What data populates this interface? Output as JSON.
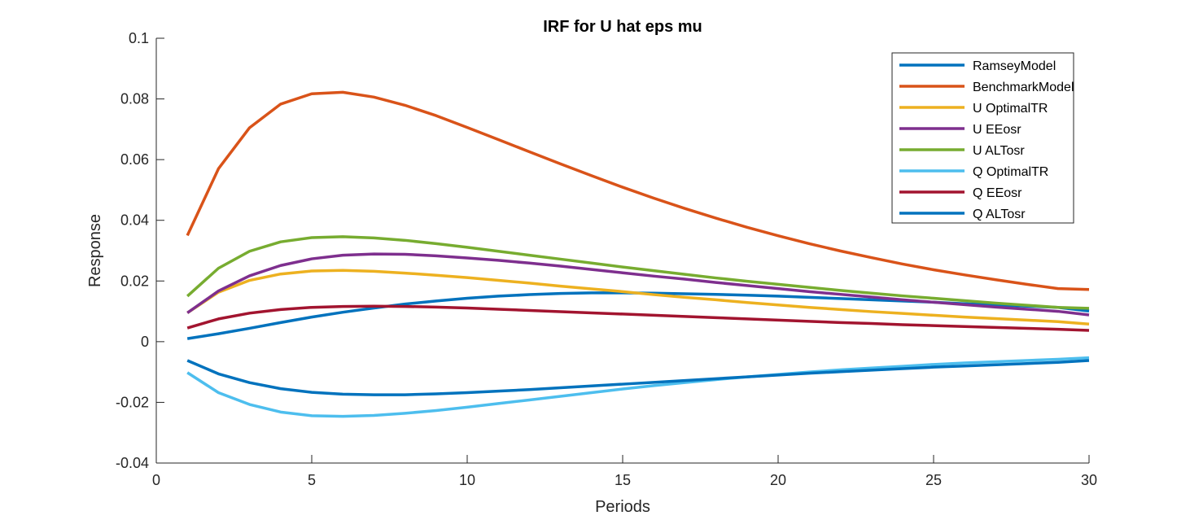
{
  "chart_data": {
    "type": "line",
    "title": "IRF for U hat eps mu",
    "xlabel": "Periods",
    "ylabel": "Response",
    "xlim": [
      0,
      30
    ],
    "ylim": [
      -0.04,
      0.1
    ],
    "xticks": [
      0,
      5,
      10,
      15,
      20,
      25,
      30
    ],
    "yticks": [
      -0.04,
      -0.02,
      0,
      0.02,
      0.04,
      0.06,
      0.08,
      0.1
    ],
    "xtick_labels": [
      "0",
      "5",
      "10",
      "15",
      "20",
      "25",
      "30"
    ],
    "ytick_labels": [
      "-0.04",
      "-0.02",
      "0",
      "0.02",
      "0.04",
      "0.06",
      "0.08",
      "0.1"
    ],
    "grid": false,
    "legend_position": "top-right",
    "x": [
      1,
      2,
      3,
      4,
      5,
      6,
      7,
      8,
      9,
      10,
      11,
      12,
      13,
      14,
      15,
      16,
      17,
      18,
      19,
      20,
      21,
      22,
      23,
      24,
      25,
      26,
      27,
      28,
      29,
      30
    ],
    "series": [
      {
        "name": "RamseyModel",
        "color": "#0072BD",
        "values": [
          0.001,
          0.0026,
          0.0044,
          0.0063,
          0.0081,
          0.0097,
          0.0111,
          0.0124,
          0.0134,
          0.0143,
          0.015,
          0.0155,
          0.0159,
          0.0161,
          0.0161,
          0.016,
          0.0158,
          0.0156,
          0.0153,
          0.015,
          0.0146,
          0.0142,
          0.0138,
          0.0134,
          0.013,
          0.0125,
          0.0121,
          0.0117,
          0.0113,
          0.0101
        ]
      },
      {
        "name": "BenchmarkModel",
        "color": "#D95319",
        "values": [
          0.035,
          0.057,
          0.0705,
          0.0783,
          0.0817,
          0.0822,
          0.0806,
          0.0779,
          0.0745,
          0.0706,
          0.0666,
          0.0626,
          0.0586,
          0.0547,
          0.0509,
          0.0473,
          0.0439,
          0.0407,
          0.0377,
          0.0349,
          0.0323,
          0.0299,
          0.0277,
          0.0256,
          0.0237,
          0.022,
          0.0204,
          0.0189,
          0.0175,
          0.0172
        ]
      },
      {
        "name": "U OptimalTR",
        "color": "#EDB120",
        "values": [
          0.0095,
          0.0163,
          0.0202,
          0.0223,
          0.0233,
          0.0235,
          0.0232,
          0.0226,
          0.0219,
          0.0211,
          0.0202,
          0.0193,
          0.0183,
          0.0174,
          0.0165,
          0.0155,
          0.0146,
          0.0138,
          0.0129,
          0.0121,
          0.0113,
          0.0106,
          0.0099,
          0.0093,
          0.0087,
          0.0081,
          0.0076,
          0.0071,
          0.0066,
          0.0058
        ]
      },
      {
        "name": "U EEosr",
        "color": "#7E2F8E",
        "values": [
          0.0095,
          0.0167,
          0.0217,
          0.0251,
          0.0273,
          0.0285,
          0.0289,
          0.0288,
          0.0283,
          0.0276,
          0.0268,
          0.0259,
          0.0249,
          0.0238,
          0.0227,
          0.0216,
          0.0206,
          0.0195,
          0.0185,
          0.0175,
          0.0165,
          0.0156,
          0.0147,
          0.0138,
          0.013,
          0.0122,
          0.0114,
          0.0107,
          0.01,
          0.0088
        ]
      },
      {
        "name": "U ALTosr",
        "color": "#77AC30",
        "values": [
          0.015,
          0.0242,
          0.0298,
          0.0329,
          0.0343,
          0.0346,
          0.0342,
          0.0334,
          0.0323,
          0.0311,
          0.0298,
          0.0285,
          0.0272,
          0.0259,
          0.0246,
          0.0234,
          0.0222,
          0.021,
          0.0199,
          0.0189,
          0.0179,
          0.0169,
          0.016,
          0.0151,
          0.0143,
          0.0135,
          0.0127,
          0.012,
          0.0113,
          0.011
        ]
      },
      {
        "name": "Q OptimalTR",
        "color": "#4DBEEE",
        "values": [
          -0.0102,
          -0.0168,
          -0.0207,
          -0.0232,
          -0.0244,
          -0.0246,
          -0.0243,
          -0.0236,
          -0.0227,
          -0.0216,
          -0.0204,
          -0.0192,
          -0.018,
          -0.0168,
          -0.0156,
          -0.0145,
          -0.0135,
          -0.0125,
          -0.0116,
          -0.0108,
          -0.01,
          -0.0093,
          -0.0087,
          -0.0081,
          -0.0075,
          -0.007,
          -0.0066,
          -0.0062,
          -0.0058,
          -0.0053
        ]
      },
      {
        "name": "Q EEosr",
        "color": "#A2142F",
        "values": [
          0.0045,
          0.0075,
          0.0094,
          0.0106,
          0.0113,
          0.0116,
          0.0117,
          0.0116,
          0.0114,
          0.0111,
          0.0107,
          0.0103,
          0.0099,
          0.0095,
          0.0091,
          0.0087,
          0.0083,
          0.0079,
          0.0075,
          0.0071,
          0.0067,
          0.0063,
          0.006,
          0.0056,
          0.0053,
          0.005,
          0.0047,
          0.0044,
          0.0041,
          0.0037
        ]
      },
      {
        "name": "Q ALTosr",
        "color": "#0072BD",
        "values": [
          -0.0062,
          -0.0106,
          -0.0135,
          -0.0155,
          -0.0167,
          -0.0173,
          -0.0175,
          -0.0175,
          -0.0172,
          -0.0168,
          -0.0163,
          -0.0158,
          -0.0152,
          -0.0146,
          -0.014,
          -0.0134,
          -0.0128,
          -0.0122,
          -0.0116,
          -0.011,
          -0.0104,
          -0.0099,
          -0.0094,
          -0.0089,
          -0.0084,
          -0.008,
          -0.0076,
          -0.0072,
          -0.0068,
          -0.0062
        ]
      }
    ]
  }
}
